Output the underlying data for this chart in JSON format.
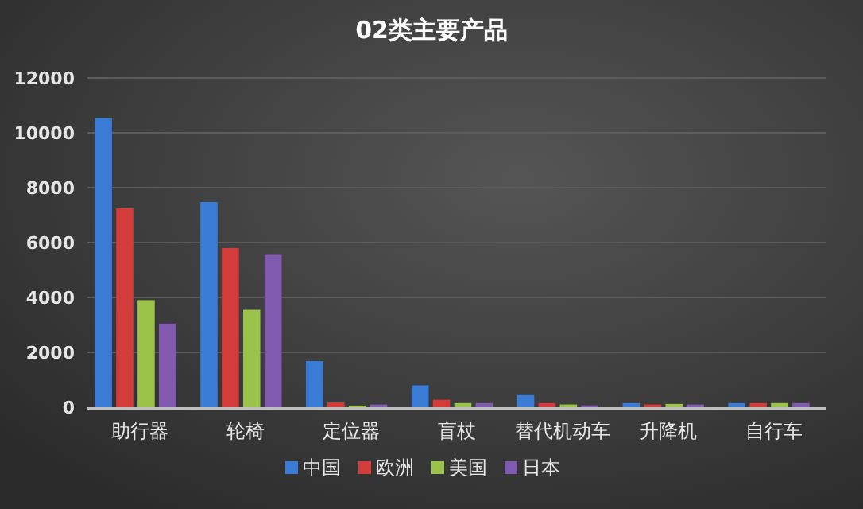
{
  "chart_data": {
    "type": "bar",
    "title": "02类主要产品",
    "categories": [
      "助行器",
      "轮椅",
      "定位器",
      "盲杖",
      "替代机动车",
      "升降机",
      "自行车"
    ],
    "series": [
      {
        "name": "中国",
        "color": "#3a7bd5",
        "values": [
          10550,
          7480,
          1680,
          800,
          440,
          150,
          150
        ]
      },
      {
        "name": "欧洲",
        "color": "#d23c3a",
        "values": [
          7250,
          5800,
          170,
          270,
          150,
          100,
          150
        ]
      },
      {
        "name": "美国",
        "color": "#9bc34a",
        "values": [
          3900,
          3550,
          60,
          150,
          100,
          120,
          150
        ]
      },
      {
        "name": "日本",
        "color": "#7f5aae",
        "values": [
          3050,
          5550,
          100,
          150,
          70,
          100,
          150
        ]
      }
    ],
    "ylim": [
      0,
      12000
    ],
    "yticks": [
      0,
      2000,
      4000,
      6000,
      8000,
      10000,
      12000
    ],
    "grid": "y",
    "legend": "bottom"
  }
}
